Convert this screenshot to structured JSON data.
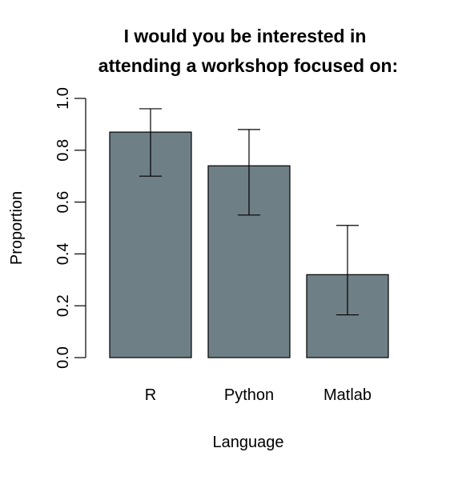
{
  "chart_data": {
    "type": "bar",
    "title_lines": [
      "I would you be interested in",
      "attending a workshop focused on:"
    ],
    "xlabel": "Language",
    "ylabel": "Proportion",
    "categories": [
      "R",
      "Python",
      "Matlab"
    ],
    "values": [
      0.87,
      0.74,
      0.32
    ],
    "error_low": [
      0.7,
      0.55,
      0.165
    ],
    "error_high": [
      0.96,
      0.88,
      0.51
    ],
    "ylim": [
      0,
      1
    ],
    "yticks": [
      0.0,
      0.2,
      0.4,
      0.6,
      0.8,
      1.0
    ],
    "ytick_labels": [
      "0.0",
      "0.2",
      "0.4",
      "0.6",
      "0.8",
      "1.0"
    ],
    "bar_color": "#6e7f86",
    "grid": false,
    "legend": "none"
  }
}
